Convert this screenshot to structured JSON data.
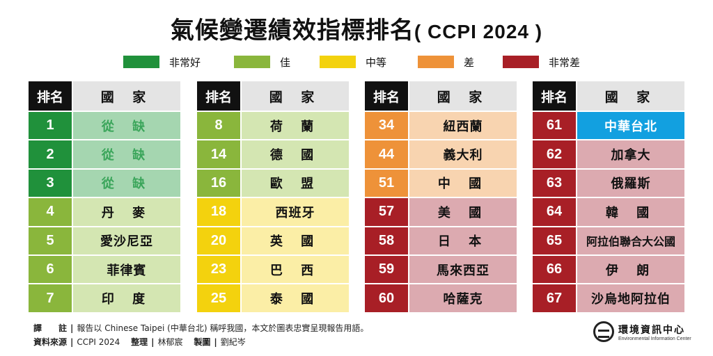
{
  "title": {
    "main": "氣候變遷績效指標排名",
    "sub": "( CCPI 2024 )"
  },
  "legend": [
    {
      "label": "非常好",
      "color": "#20913b"
    },
    {
      "label": "佳",
      "color": "#8ab63c"
    },
    {
      "label": "中等",
      "color": "#f3d20e"
    },
    {
      "label": "差",
      "color": "#ee9239"
    },
    {
      "label": "非常差",
      "color": "#a81f26"
    }
  ],
  "header": {
    "rank": "排名",
    "country": "國 家"
  },
  "columns": [
    {
      "rows": [
        {
          "rank": "1",
          "name": "從 缺",
          "level": "very_good",
          "vacant": true
        },
        {
          "rank": "2",
          "name": "從 缺",
          "level": "very_good",
          "vacant": true
        },
        {
          "rank": "3",
          "name": "從 缺",
          "level": "very_good",
          "vacant": true
        },
        {
          "rank": "4",
          "name": "丹 麥",
          "level": "good"
        },
        {
          "rank": "5",
          "name": "愛沙尼亞",
          "level": "good"
        },
        {
          "rank": "6",
          "name": "菲律賓",
          "level": "good"
        },
        {
          "rank": "7",
          "name": "印 度",
          "level": "good"
        }
      ]
    },
    {
      "rows": [
        {
          "rank": "8",
          "name": "荷 蘭",
          "level": "good"
        },
        {
          "rank": "14",
          "name": "德 國",
          "level": "good"
        },
        {
          "rank": "16",
          "name": "歐 盟",
          "level": "good"
        },
        {
          "rank": "18",
          "name": "西班牙",
          "level": "medium"
        },
        {
          "rank": "20",
          "name": "英 國",
          "level": "medium"
        },
        {
          "rank": "23",
          "name": "巴 西",
          "level": "medium"
        },
        {
          "rank": "25",
          "name": "泰 國",
          "level": "medium"
        }
      ]
    },
    {
      "rows": [
        {
          "rank": "34",
          "name": "紐西蘭",
          "level": "poor"
        },
        {
          "rank": "44",
          "name": "義大利",
          "level": "poor"
        },
        {
          "rank": "51",
          "name": "中 國",
          "level": "poor"
        },
        {
          "rank": "57",
          "name": "美 國",
          "level": "very_poor"
        },
        {
          "rank": "58",
          "name": "日 本",
          "level": "very_poor"
        },
        {
          "rank": "59",
          "name": "馬來西亞",
          "level": "very_poor"
        },
        {
          "rank": "60",
          "name": "哈薩克",
          "level": "very_poor"
        }
      ]
    },
    {
      "rows": [
        {
          "rank": "61",
          "name": "中華台北",
          "level": "very_poor",
          "highlight": true
        },
        {
          "rank": "62",
          "name": "加拿大",
          "level": "very_poor"
        },
        {
          "rank": "63",
          "name": "俄羅斯",
          "level": "very_poor"
        },
        {
          "rank": "64",
          "name": "韓 國",
          "level": "very_poor"
        },
        {
          "rank": "65",
          "name": "阿拉伯聯合大公國",
          "level": "very_poor"
        },
        {
          "rank": "66",
          "name": "伊 朗",
          "level": "very_poor"
        },
        {
          "rank": "67",
          "name": "沙烏地阿拉伯",
          "level": "very_poor"
        }
      ]
    }
  ],
  "colors": {
    "very_good": {
      "rank": "#20913b",
      "cell": "#a5d6b0",
      "text": "#3aa55a"
    },
    "good": {
      "rank": "#8ab63c",
      "cell": "#d4e6b2",
      "text": "#111111"
    },
    "medium": {
      "rank": "#f3d20e",
      "cell": "#fbeea6",
      "text": "#111111"
    },
    "poor": {
      "rank": "#ee9239",
      "cell": "#f8d4b0",
      "text": "#111111"
    },
    "very_poor": {
      "rank": "#a81f26",
      "cell": "#dcaab0",
      "text": "#111111"
    },
    "highlight": {
      "cell": "#12a0e0",
      "text": "#ffffff"
    }
  },
  "footer": {
    "note_label": "譯　　註",
    "note_text": "報告以 Chinese Taipei (中華台北) 稱呼我國，本文於圖表忠實呈現報告用語。",
    "source_label": "資料來源",
    "source_text": "CCPI 2024",
    "editor_label": "整理",
    "editor_name": "林郁宸",
    "designer_label": "製圖",
    "designer_name": "劉紀岑",
    "separator": "|"
  },
  "logo": {
    "zh": "環境資訊中心",
    "en": "Environmental Information Center"
  }
}
